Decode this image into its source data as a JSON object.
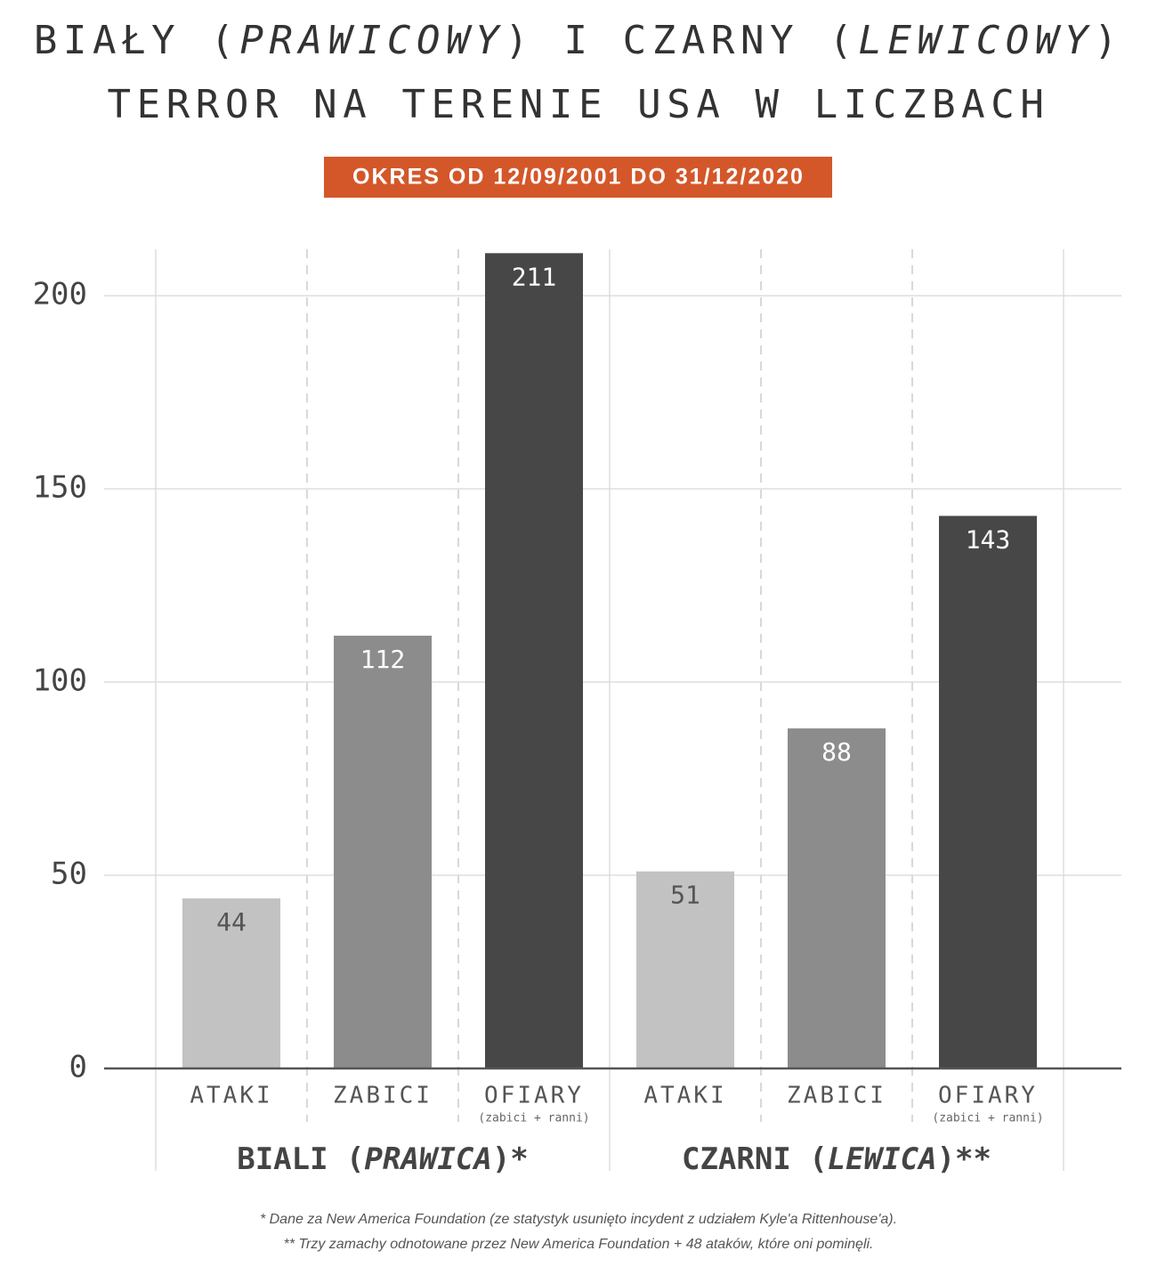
{
  "chart_data": {
    "type": "grouped-bar",
    "title": [
      [
        "BIAŁY (",
        "PRAWICOWY",
        ") I CZARNY (",
        "LEWICOWY",
        ")"
      ],
      [
        "TERROR NA TERENIE USA W LICZBACH"
      ]
    ],
    "subtitle": "OKRES OD 12/09/2001 DO 31/12/2020",
    "categories": [
      "ATAKI",
      "ZABICI",
      "OFIARY"
    ],
    "category_notes": [
      null,
      null,
      "(zabici + ranni)"
    ],
    "colors": [
      "#c2c2c2",
      "#8c8c8c",
      "#474747"
    ],
    "groups": [
      {
        "name": [
          "BIALI (",
          "PRAWICA",
          ")*"
        ],
        "values": [
          44,
          112,
          211
        ]
      },
      {
        "name": [
          "CZARNI (",
          "LEWICA",
          ")**"
        ],
        "values": [
          51,
          88,
          143
        ]
      }
    ],
    "ylim": [
      0,
      212
    ],
    "yticks": [
      0,
      50,
      100,
      150,
      200
    ],
    "grid": true,
    "footnotes": [
      "* Dane za New America Foundation (ze statystyk usunięto incydent z udziałem Kyle'a Rittenhouse'a).",
      "** Trzy zamachy odnotowane przez New America Foundation + 48 ataków, które oni pominęli."
    ]
  }
}
